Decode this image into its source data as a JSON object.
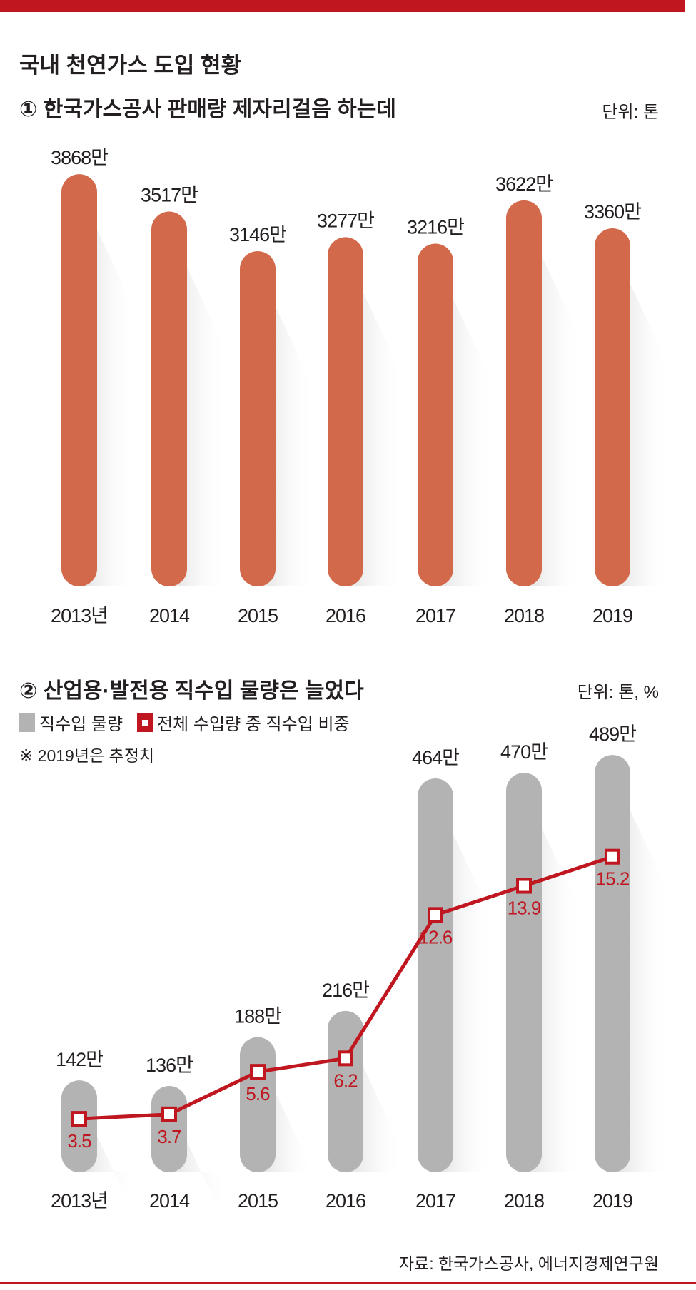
{
  "colors": {
    "accent": "#c0161f",
    "bar1": "#d2694a",
    "bar2": "#b3b3b3",
    "line": "#c0161f",
    "text": "#231f20"
  },
  "header": {
    "title": "국내 천연가스 도입 현황"
  },
  "chart_data": [
    {
      "type": "bar",
      "title": "① 한국가스공사 판매량 제자리걸음 하는데",
      "unit": "단위: 톤",
      "categories": [
        "2013년",
        "2014",
        "2015",
        "2016",
        "2017",
        "2018",
        "2019"
      ],
      "values": [
        3868,
        3517,
        3146,
        3277,
        3216,
        3622,
        3360
      ],
      "labels": [
        "3868만",
        "3517만",
        "3146만",
        "3277만",
        "3216만",
        "3622만",
        "3360만"
      ]
    },
    {
      "type": "bar+line",
      "title": "② 산업용·발전용 직수입 물량은 늘었다",
      "unit": "단위: 톤, %",
      "note": "※ 2019년은 추정치",
      "legend": [
        "직수입 물량",
        "전체 수입량 중 직수입 비중"
      ],
      "categories": [
        "2013년",
        "2014",
        "2015",
        "2016",
        "2017",
        "2018",
        "2019"
      ],
      "series": [
        {
          "name": "직수입 물량",
          "type": "bar",
          "values": [
            142,
            136,
            188,
            216,
            464,
            470,
            489
          ],
          "labels": [
            "142만",
            "136만",
            "188만",
            "216만",
            "464만",
            "470만",
            "489만"
          ]
        },
        {
          "name": "전체 수입량 중 직수입 비중",
          "type": "line",
          "values": [
            3.5,
            3.7,
            5.6,
            6.2,
            12.6,
            13.9,
            15.2
          ],
          "labels": [
            "3.5",
            "3.7",
            "5.6",
            "6.2",
            "12.6",
            "13.9",
            "15.2"
          ]
        }
      ]
    }
  ],
  "footer": {
    "source": "자료: 한국가스공사, 에너지경제연구원"
  }
}
